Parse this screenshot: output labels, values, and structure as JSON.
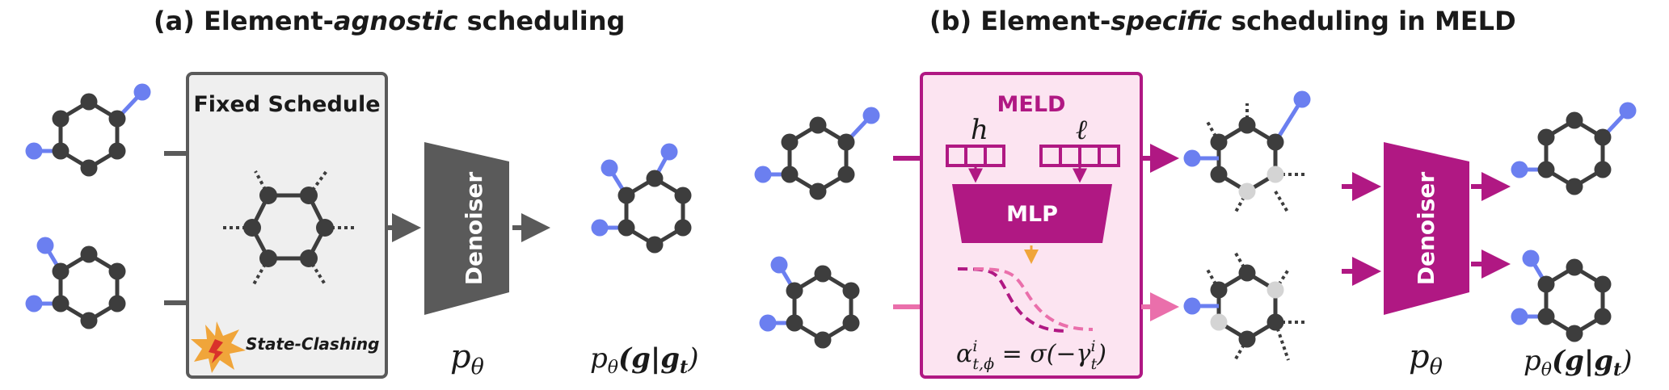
{
  "titles": {
    "a_prefix": "(a) Element-",
    "a_italic": "agnostic",
    "a_suffix": " scheduling",
    "b_prefix": "(b) Element-",
    "b_italic": "specific",
    "b_suffix": " scheduling in MELD"
  },
  "panel_a": {
    "box_title": "Fixed Schedule",
    "clash_label": "State-Clashing",
    "denoiser_label": "Denoiser",
    "p_theta": "p",
    "p_theta_sub": "θ",
    "output_prefix": "p",
    "output_sub": "θ",
    "output_args": "(g|g",
    "output_args_sub": "t",
    "output_close": ")"
  },
  "panel_b": {
    "box_title": "MELD",
    "h_label": "h",
    "l_label": "ℓ",
    "mlp_label": "MLP",
    "alpha_label": "α",
    "alpha_sup": "i",
    "alpha_sub": "t,ϕ",
    "equals_sigma": " = σ(−γ",
    "gamma_sup": "i",
    "gamma_sub": "t",
    "alpha_close": ")",
    "denoiser_label": "Denoiser",
    "p_theta": "p",
    "p_theta_sub": "θ",
    "output_prefix": "p",
    "output_sub": "θ",
    "output_args": "(g|g",
    "output_args_sub": "t",
    "output_close": ")"
  },
  "colors": {
    "atom": "#3d3d3d",
    "atom_faded": "#d4d4d4",
    "substituent": "#6b7ff0",
    "grey_panel_bg": "#efefef",
    "grey_panel_border": "#5a5a5a",
    "denoiser_grey": "#5a5a5a",
    "meld_magenta": "#b01883",
    "meld_bg": "#fce4f1",
    "meld_pink": "#ea6fab",
    "orange": "#f0a53a"
  }
}
